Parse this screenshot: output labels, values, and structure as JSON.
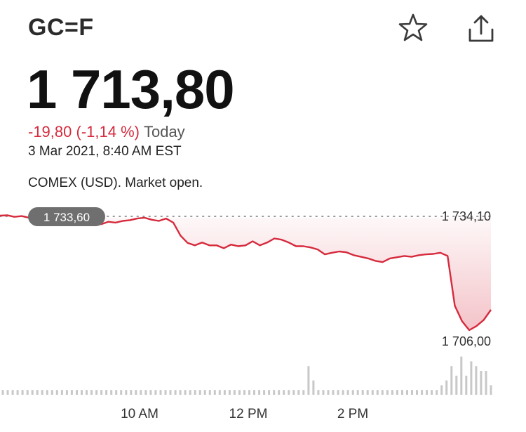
{
  "header": {
    "ticker": "GC=F",
    "watchlist_icon": "star-icon",
    "share_icon": "share-icon"
  },
  "quote": {
    "price": "1 713,80",
    "change": "-19,80 (-1,14 %)",
    "period": "Today",
    "timestamp": "3 Mar 2021, 8:40 AM EST",
    "market_status": "COMEX (USD). Market open.",
    "change_color": "#d62a3d"
  },
  "chart_data": {
    "type": "line",
    "title": "",
    "xlabel": "",
    "ylabel": "",
    "series": [
      {
        "values": [
          1734.1,
          1734.2,
          1733.8,
          1734.0,
          1733.6,
          1733.3,
          1733.1,
          1733.0,
          1732.8,
          1733.0,
          1732.6,
          1732.3,
          1732.0,
          1732.4,
          1732.0,
          1732.6,
          1732.4,
          1732.8,
          1733.0,
          1733.4,
          1733.6,
          1733.1,
          1732.8,
          1733.4,
          1732.4,
          1729.2,
          1727.4,
          1726.8,
          1727.5,
          1726.8,
          1726.8,
          1726.1,
          1727.0,
          1726.6,
          1726.8,
          1727.8,
          1726.8,
          1727.5,
          1728.5,
          1728.2,
          1727.5,
          1726.6,
          1726.6,
          1726.3,
          1725.8,
          1724.6,
          1725.0,
          1725.3,
          1725.1,
          1724.4,
          1724.0,
          1723.6,
          1723.0,
          1722.7,
          1723.6,
          1723.9,
          1724.2,
          1724.0,
          1724.4,
          1724.6,
          1724.7,
          1725.0,
          1724.2,
          1712.0,
          1708.2,
          1706.0,
          1707.0,
          1708.5,
          1711.0
        ]
      }
    ],
    "reference_value": 1733.6,
    "reference_label": "1 733,60",
    "y_high_label": "1 734,10",
    "y_low_label": "1 706,00",
    "ylim": [
      1706.0,
      1734.1
    ],
    "x_ticks": [
      "10 AM",
      "12 PM",
      "2 PM"
    ],
    "volume": [
      1,
      1,
      1,
      1,
      1,
      1,
      1,
      1,
      1,
      1,
      1,
      1,
      1,
      1,
      1,
      1,
      1,
      1,
      1,
      1,
      1,
      1,
      1,
      1,
      1,
      1,
      1,
      1,
      1,
      1,
      1,
      1,
      1,
      1,
      1,
      1,
      1,
      1,
      1,
      1,
      1,
      1,
      1,
      1,
      1,
      1,
      1,
      1,
      1,
      1,
      1,
      1,
      1,
      1,
      1,
      1,
      1,
      1,
      1,
      1,
      1,
      1,
      6,
      3,
      1,
      1,
      1,
      1,
      1,
      1,
      1,
      1,
      1,
      1,
      1,
      1,
      1,
      1,
      1,
      1,
      1,
      1,
      1,
      1,
      1,
      1,
      1,
      1,
      1,
      2,
      3,
      6,
      4,
      8,
      4,
      7,
      6,
      5,
      5,
      2
    ],
    "line_color": "#d62a3d",
    "volume_color": "#c8c8c8",
    "grid": false
  }
}
